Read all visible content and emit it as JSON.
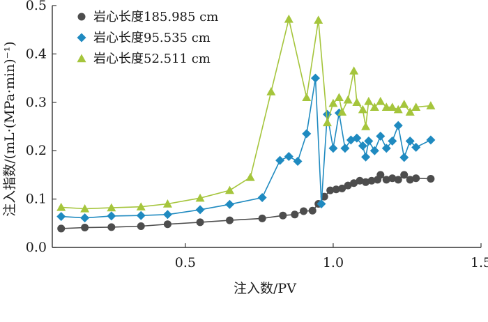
{
  "chart_data": {
    "type": "line",
    "xlabel": "注入数/PV",
    "ylabel": "注入指数/(mL·(MPa·min)⁻¹)",
    "xlim": [
      0.05,
      1.5
    ],
    "ylim": [
      0,
      0.5
    ],
    "x_ticks": [
      0.5,
      1.0,
      1.5
    ],
    "x_tick_labels": [
      "0.5",
      "1.0",
      "1.5"
    ],
    "y_ticks": [
      0,
      0.1,
      0.2,
      0.3,
      0.4,
      0.5
    ],
    "y_tick_labels": [
      "0.0",
      "0.1",
      "0.2",
      "0.3",
      "0.4",
      "0.5"
    ],
    "grid": false,
    "legend_position": "top-left",
    "series": [
      {
        "name": "岩心长度185.985 cm",
        "marker": "circle",
        "color": "#4d4d4d",
        "points": [
          [
            0.08,
            0.039
          ],
          [
            0.16,
            0.041
          ],
          [
            0.25,
            0.042
          ],
          [
            0.35,
            0.044
          ],
          [
            0.44,
            0.048
          ],
          [
            0.55,
            0.052
          ],
          [
            0.65,
            0.056
          ],
          [
            0.76,
            0.06
          ],
          [
            0.83,
            0.066
          ],
          [
            0.87,
            0.068
          ],
          [
            0.9,
            0.075
          ],
          [
            0.93,
            0.076
          ],
          [
            0.95,
            0.09
          ],
          [
            0.97,
            0.105
          ],
          [
            0.99,
            0.118
          ],
          [
            1.01,
            0.12
          ],
          [
            1.03,
            0.122
          ],
          [
            1.05,
            0.128
          ],
          [
            1.07,
            0.133
          ],
          [
            1.09,
            0.138
          ],
          [
            1.11,
            0.135
          ],
          [
            1.13,
            0.138
          ],
          [
            1.15,
            0.14
          ],
          [
            1.16,
            0.15
          ],
          [
            1.18,
            0.14
          ],
          [
            1.2,
            0.143
          ],
          [
            1.22,
            0.14
          ],
          [
            1.24,
            0.15
          ],
          [
            1.26,
            0.14
          ],
          [
            1.28,
            0.143
          ],
          [
            1.33,
            0.142
          ]
        ]
      },
      {
        "name": "岩心长度95.535 cm",
        "marker": "diamond",
        "color": "#1f8ac0",
        "points": [
          [
            0.08,
            0.064
          ],
          [
            0.16,
            0.061
          ],
          [
            0.25,
            0.065
          ],
          [
            0.35,
            0.066
          ],
          [
            0.44,
            0.068
          ],
          [
            0.55,
            0.078
          ],
          [
            0.65,
            0.089
          ],
          [
            0.76,
            0.103
          ],
          [
            0.82,
            0.18
          ],
          [
            0.85,
            0.188
          ],
          [
            0.88,
            0.178
          ],
          [
            0.91,
            0.235
          ],
          [
            0.94,
            0.35
          ],
          [
            0.96,
            0.09
          ],
          [
            0.98,
            0.275
          ],
          [
            1.0,
            0.205
          ],
          [
            1.02,
            0.278
          ],
          [
            1.04,
            0.205
          ],
          [
            1.06,
            0.222
          ],
          [
            1.08,
            0.226
          ],
          [
            1.1,
            0.21
          ],
          [
            1.11,
            0.187
          ],
          [
            1.12,
            0.22
          ],
          [
            1.14,
            0.2
          ],
          [
            1.16,
            0.23
          ],
          [
            1.18,
            0.205
          ],
          [
            1.2,
            0.22
          ],
          [
            1.22,
            0.252
          ],
          [
            1.24,
            0.186
          ],
          [
            1.26,
            0.22
          ],
          [
            1.28,
            0.207
          ],
          [
            1.33,
            0.222
          ]
        ]
      },
      {
        "name": "岩心长度52.511 cm",
        "marker": "triangle",
        "color": "#a5c53c",
        "points": [
          [
            0.08,
            0.083
          ],
          [
            0.16,
            0.08
          ],
          [
            0.25,
            0.082
          ],
          [
            0.35,
            0.084
          ],
          [
            0.44,
            0.09
          ],
          [
            0.55,
            0.102
          ],
          [
            0.65,
            0.118
          ],
          [
            0.72,
            0.145
          ],
          [
            0.79,
            0.322
          ],
          [
            0.85,
            0.472
          ],
          [
            0.91,
            0.31
          ],
          [
            0.95,
            0.47
          ],
          [
            0.98,
            0.258
          ],
          [
            1.0,
            0.298
          ],
          [
            1.02,
            0.31
          ],
          [
            1.03,
            0.28
          ],
          [
            1.05,
            0.305
          ],
          [
            1.07,
            0.365
          ],
          [
            1.08,
            0.3
          ],
          [
            1.1,
            0.285
          ],
          [
            1.11,
            0.25
          ],
          [
            1.12,
            0.302
          ],
          [
            1.14,
            0.29
          ],
          [
            1.16,
            0.302
          ],
          [
            1.18,
            0.29
          ],
          [
            1.2,
            0.29
          ],
          [
            1.22,
            0.285
          ],
          [
            1.24,
            0.296
          ],
          [
            1.26,
            0.28
          ],
          [
            1.28,
            0.29
          ],
          [
            1.33,
            0.293
          ]
        ]
      }
    ]
  }
}
